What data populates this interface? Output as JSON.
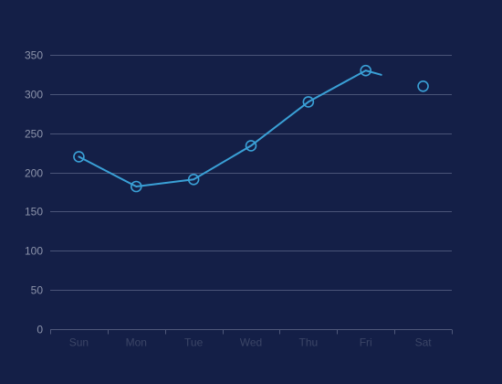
{
  "chart_data": {
    "type": "line",
    "categories": [
      "Sun",
      "Mon",
      "Tue",
      "Wed",
      "Thu",
      "Fri",
      "Sat"
    ],
    "series": [
      {
        "values": [
          220,
          182,
          191,
          234,
          290,
          330,
          310
        ],
        "line_segments": [
          [
            0,
            5
          ]
        ],
        "color": "#3aa0d6"
      }
    ],
    "ylim": [
      0,
      350
    ],
    "yticks": [
      0,
      50,
      100,
      150,
      200,
      250,
      300,
      350
    ],
    "grid": true,
    "background": "#141f47"
  }
}
